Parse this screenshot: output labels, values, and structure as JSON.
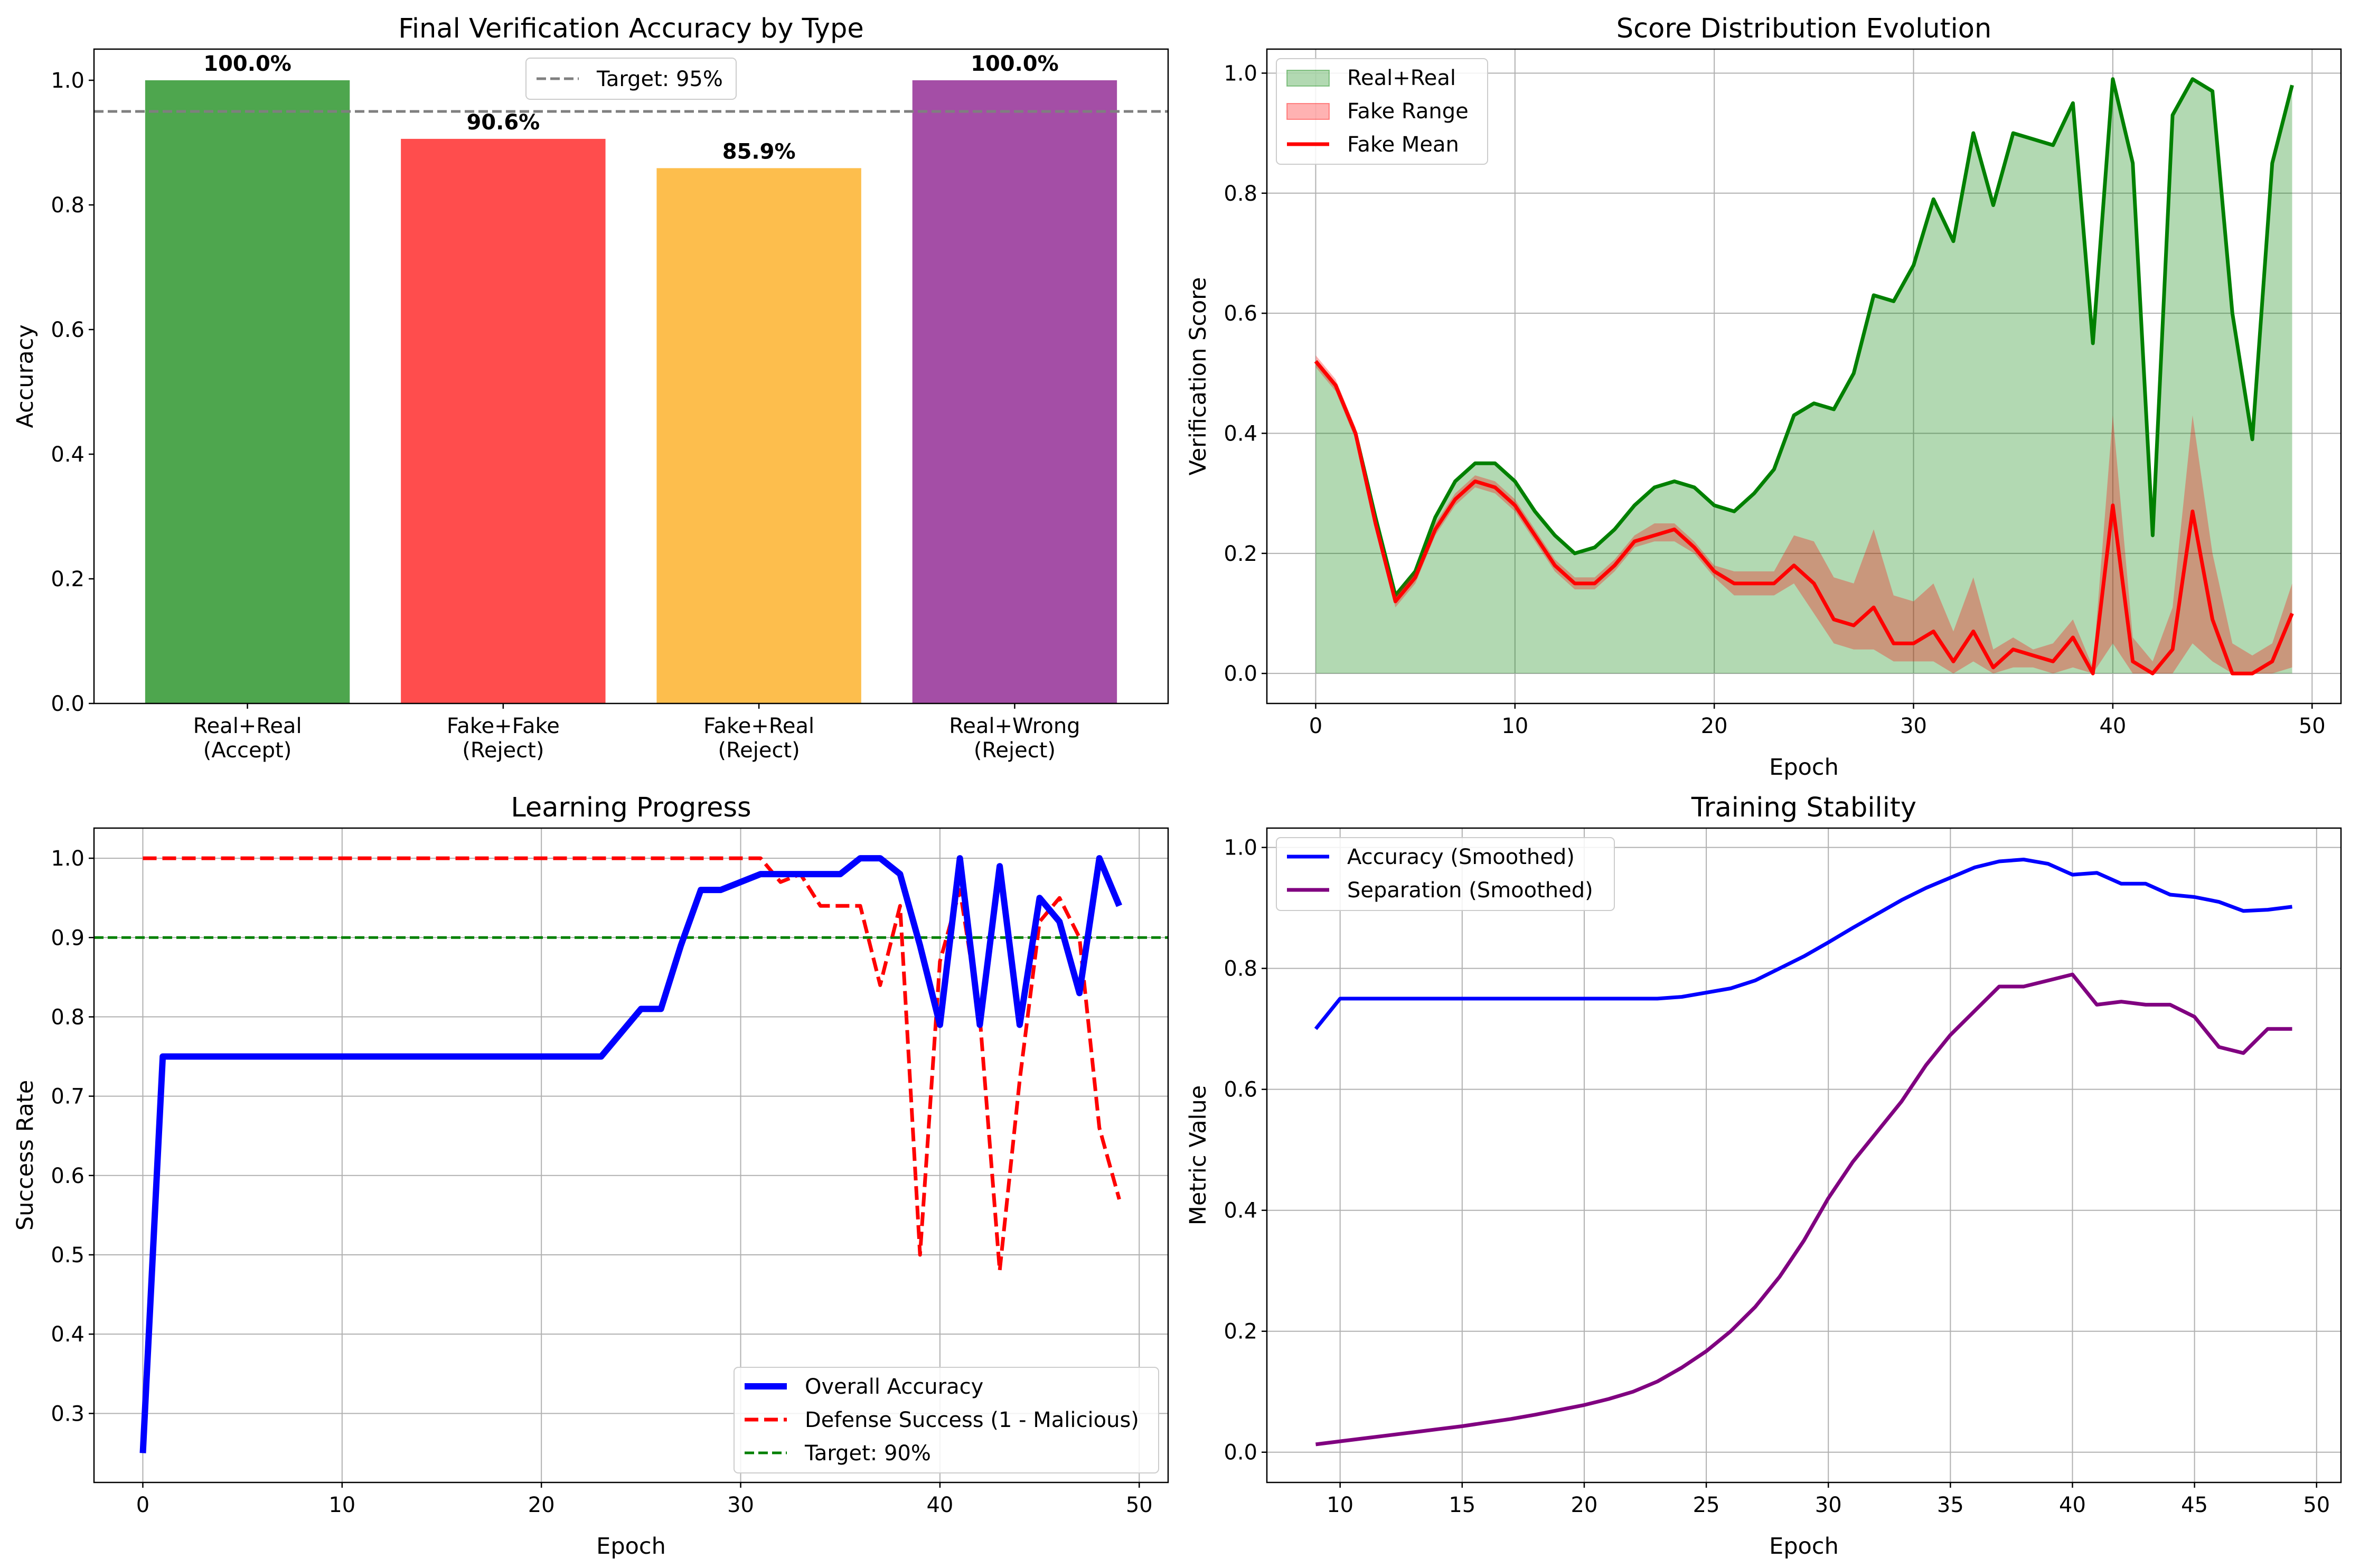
{
  "chart_data": [
    {
      "type": "bar",
      "title": "Final Verification Accuracy by Type",
      "xlabel": "",
      "ylabel": "Accuracy",
      "ylim": [
        0,
        1.05
      ],
      "yticks": [
        0.0,
        0.2,
        0.4,
        0.6,
        0.8,
        1.0
      ],
      "ytick_labels": [
        "0.0",
        "0.2",
        "0.4",
        "0.6",
        "0.8",
        "1.0"
      ],
      "categories": [
        "Real+Real\n(Accept)",
        "Fake+Fake\n(Reject)",
        "Fake+Real\n(Reject)",
        "Real+Wrong\n(Reject)"
      ],
      "values": [
        1.0,
        0.906,
        0.859,
        1.0
      ],
      "bar_labels": [
        "100.0%",
        "90.6%",
        "85.9%",
        "100.0%"
      ],
      "bar_colors": [
        "#4ea64e",
        "#ff4d4d",
        "#fdbe4d",
        "#a44ea6"
      ],
      "reference_line": {
        "value": 0.95,
        "label": "Target: 95%",
        "color": "#7f7f7f"
      },
      "legend_position": "top-center",
      "grid": false
    },
    {
      "type": "area",
      "title": "Score Distribution Evolution",
      "xlabel": "Epoch",
      "ylabel": "Verification Score",
      "xlim": [
        -2.45,
        51.45
      ],
      "ylim": [
        -0.05,
        1.04
      ],
      "xticks": [
        0,
        10,
        20,
        30,
        40,
        50
      ],
      "xtick_labels": [
        "0",
        "10",
        "20",
        "30",
        "40",
        "50"
      ],
      "yticks": [
        0.0,
        0.2,
        0.4,
        0.6,
        0.8,
        1.0
      ],
      "ytick_labels": [
        "0.0",
        "0.2",
        "0.4",
        "0.6",
        "0.8",
        "1.0"
      ],
      "x": [
        0,
        1,
        2,
        3,
        4,
        5,
        6,
        7,
        8,
        9,
        10,
        11,
        12,
        13,
        14,
        15,
        16,
        17,
        18,
        19,
        20,
        21,
        22,
        23,
        24,
        25,
        26,
        27,
        28,
        29,
        30,
        31,
        32,
        33,
        34,
        35,
        36,
        37,
        38,
        39,
        40,
        41,
        42,
        43,
        44,
        45,
        46,
        47,
        48,
        49
      ],
      "real_real": [
        0.52,
        0.48,
        0.4,
        0.26,
        0.13,
        0.17,
        0.26,
        0.32,
        0.35,
        0.35,
        0.32,
        0.27,
        0.23,
        0.2,
        0.21,
        0.24,
        0.28,
        0.31,
        0.32,
        0.31,
        0.28,
        0.27,
        0.3,
        0.34,
        0.43,
        0.45,
        0.44,
        0.5,
        0.63,
        0.62,
        0.68,
        0.79,
        0.72,
        0.9,
        0.78,
        0.9,
        0.89,
        0.88,
        0.95,
        0.55,
        0.99,
        0.85,
        0.23,
        0.93,
        0.99,
        0.97,
        0.6,
        0.39,
        0.85,
        0.98
      ],
      "fake_mean": [
        0.52,
        0.48,
        0.4,
        0.25,
        0.12,
        0.16,
        0.24,
        0.29,
        0.32,
        0.31,
        0.28,
        0.23,
        0.18,
        0.15,
        0.15,
        0.18,
        0.22,
        0.23,
        0.24,
        0.21,
        0.17,
        0.15,
        0.15,
        0.15,
        0.18,
        0.15,
        0.09,
        0.08,
        0.11,
        0.05,
        0.05,
        0.07,
        0.02,
        0.07,
        0.01,
        0.04,
        0.03,
        0.02,
        0.06,
        0.0,
        0.28,
        0.02,
        0.0,
        0.04,
        0.27,
        0.09,
        0.0,
        0.0,
        0.02,
        0.1
      ],
      "fake_min": [
        0.51,
        0.47,
        0.39,
        0.24,
        0.11,
        0.15,
        0.23,
        0.28,
        0.31,
        0.3,
        0.27,
        0.22,
        0.17,
        0.14,
        0.14,
        0.17,
        0.21,
        0.22,
        0.22,
        0.2,
        0.16,
        0.13,
        0.13,
        0.13,
        0.15,
        0.1,
        0.05,
        0.04,
        0.04,
        0.02,
        0.02,
        0.02,
        0.0,
        0.02,
        0.0,
        0.01,
        0.01,
        0.0,
        0.01,
        0.0,
        0.05,
        0.0,
        0.0,
        0.0,
        0.05,
        0.02,
        0.0,
        0.0,
        0.0,
        0.01
      ],
      "fake_max": [
        0.53,
        0.49,
        0.41,
        0.26,
        0.13,
        0.17,
        0.25,
        0.3,
        0.33,
        0.32,
        0.29,
        0.24,
        0.19,
        0.16,
        0.16,
        0.19,
        0.23,
        0.25,
        0.25,
        0.22,
        0.18,
        0.17,
        0.17,
        0.17,
        0.23,
        0.22,
        0.16,
        0.15,
        0.24,
        0.13,
        0.12,
        0.15,
        0.07,
        0.16,
        0.04,
        0.06,
        0.04,
        0.05,
        0.09,
        0.01,
        0.43,
        0.06,
        0.02,
        0.11,
        0.43,
        0.2,
        0.05,
        0.03,
        0.05,
        0.15
      ],
      "series": [
        {
          "name": "Real+Real",
          "kind": "area",
          "color": "#008000"
        },
        {
          "name": "Fake Range",
          "kind": "area",
          "color": "#ff0000"
        },
        {
          "name": "Fake Mean",
          "kind": "line",
          "color": "#ff0000"
        }
      ],
      "legend_position": "top-left",
      "grid": true
    },
    {
      "type": "line",
      "title": "Learning Progress",
      "xlabel": "Epoch",
      "ylabel": "Success Rate",
      "xlim": [
        -2.45,
        51.45
      ],
      "ylim": [
        0.213,
        1.038
      ],
      "xticks": [
        0,
        10,
        20,
        30,
        40,
        50
      ],
      "xtick_labels": [
        "0",
        "10",
        "20",
        "30",
        "40",
        "50"
      ],
      "yticks": [
        0.3,
        0.4,
        0.5,
        0.6,
        0.7,
        0.8,
        0.9,
        1.0
      ],
      "ytick_labels": [
        "0.3",
        "0.4",
        "0.5",
        "0.6",
        "0.7",
        "0.8",
        "0.9",
        "1.0"
      ],
      "x": [
        0,
        1,
        2,
        3,
        4,
        5,
        6,
        7,
        8,
        9,
        10,
        11,
        12,
        13,
        14,
        15,
        16,
        17,
        18,
        19,
        20,
        21,
        22,
        23,
        24,
        25,
        26,
        27,
        28,
        29,
        30,
        31,
        32,
        33,
        34,
        35,
        36,
        37,
        38,
        39,
        40,
        41,
        42,
        43,
        44,
        45,
        46,
        47,
        48,
        49
      ],
      "series": [
        {
          "name": "Overall Accuracy",
          "color": "#0000ff",
          "style": "solid",
          "values": [
            0.25,
            0.75,
            0.75,
            0.75,
            0.75,
            0.75,
            0.75,
            0.75,
            0.75,
            0.75,
            0.75,
            0.75,
            0.75,
            0.75,
            0.75,
            0.75,
            0.75,
            0.75,
            0.75,
            0.75,
            0.75,
            0.75,
            0.75,
            0.75,
            0.78,
            0.81,
            0.81,
            0.89,
            0.96,
            0.96,
            0.97,
            0.98,
            0.98,
            0.98,
            0.98,
            0.98,
            1.0,
            1.0,
            0.98,
            0.89,
            0.79,
            1.0,
            0.79,
            0.99,
            0.79,
            0.95,
            0.92,
            0.83,
            1.0,
            0.94
          ]
        },
        {
          "name": "Defense Success (1 - Malicious)",
          "color": "#ff0000",
          "style": "dashed",
          "values": [
            1.0,
            1.0,
            1.0,
            1.0,
            1.0,
            1.0,
            1.0,
            1.0,
            1.0,
            1.0,
            1.0,
            1.0,
            1.0,
            1.0,
            1.0,
            1.0,
            1.0,
            1.0,
            1.0,
            1.0,
            1.0,
            1.0,
            1.0,
            1.0,
            1.0,
            1.0,
            1.0,
            1.0,
            1.0,
            1.0,
            1.0,
            1.0,
            0.97,
            0.98,
            0.94,
            0.94,
            0.94,
            0.84,
            0.94,
            0.5,
            0.87,
            0.96,
            0.8,
            0.48,
            0.72,
            0.92,
            0.95,
            0.9,
            0.66,
            0.57
          ]
        },
        {
          "name": "Target: 90%",
          "color": "#008000",
          "style": "dashed",
          "constant": 0.9
        }
      ],
      "legend_position": "bottom-right",
      "grid": true
    },
    {
      "type": "line",
      "title": "Training Stability",
      "xlabel": "Epoch",
      "ylabel": "Metric Value",
      "xlim": [
        7,
        51
      ],
      "ylim": [
        -0.05,
        1.032
      ],
      "xticks": [
        10,
        15,
        20,
        25,
        30,
        35,
        40,
        45,
        50
      ],
      "xtick_labels": [
        "10",
        "15",
        "20",
        "25",
        "30",
        "35",
        "40",
        "45",
        "50"
      ],
      "yticks": [
        0.0,
        0.2,
        0.4,
        0.6,
        0.8,
        1.0
      ],
      "ytick_labels": [
        "0.0",
        "0.2",
        "0.4",
        "0.6",
        "0.8",
        "1.0"
      ],
      "x": [
        9,
        10,
        11,
        12,
        13,
        14,
        15,
        16,
        17,
        18,
        19,
        20,
        21,
        22,
        23,
        24,
        25,
        26,
        27,
        28,
        29,
        30,
        31,
        32,
        33,
        34,
        35,
        36,
        37,
        38,
        39,
        40,
        41,
        42,
        43,
        44,
        45,
        46,
        47,
        48,
        49
      ],
      "series": [
        {
          "name": "Accuracy (Smoothed)",
          "color": "#0000ff",
          "values": [
            0.7,
            0.75,
            0.75,
            0.75,
            0.75,
            0.75,
            0.75,
            0.75,
            0.75,
            0.75,
            0.75,
            0.75,
            0.75,
            0.75,
            0.75,
            0.753,
            0.76,
            0.767,
            0.78,
            0.8,
            0.82,
            0.843,
            0.867,
            0.89,
            0.913,
            0.933,
            0.95,
            0.967,
            0.977,
            0.98,
            0.973,
            0.955,
            0.958,
            0.94,
            0.94,
            0.922,
            0.918,
            0.91,
            0.895,
            0.897,
            0.902
          ]
        },
        {
          "name": "Separation (Smoothed)",
          "color": "#800080",
          "values": [
            0.013,
            0.018,
            0.023,
            0.028,
            0.033,
            0.038,
            0.043,
            0.049,
            0.055,
            0.062,
            0.07,
            0.078,
            0.088,
            0.1,
            0.117,
            0.14,
            0.167,
            0.2,
            0.24,
            0.29,
            0.35,
            0.42,
            0.48,
            0.53,
            0.58,
            0.64,
            0.69,
            0.73,
            0.77,
            0.77,
            0.78,
            0.79,
            0.74,
            0.745,
            0.74,
            0.74,
            0.72,
            0.67,
            0.66,
            0.7,
            0.7
          ]
        }
      ],
      "legend_position": "top-left",
      "grid": true
    }
  ]
}
